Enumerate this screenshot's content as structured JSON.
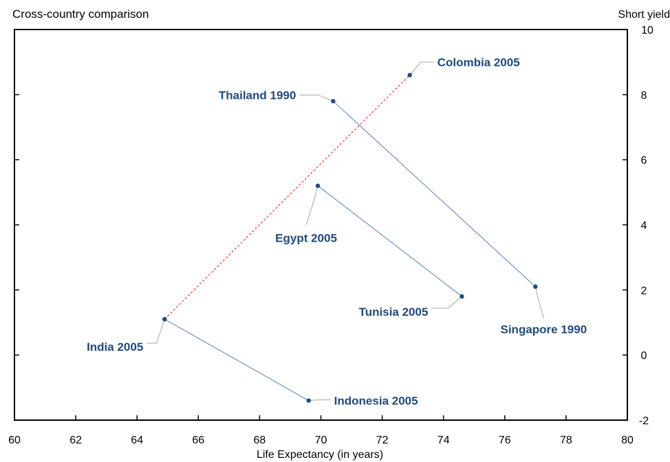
{
  "chart_data": {
    "type": "scatter",
    "title": "Cross-country comparison",
    "xlabel": "Life Expectancy (in years)",
    "ylabel": "Short yield",
    "xlim": [
      60,
      80
    ],
    "ylim": [
      -2,
      10
    ],
    "x_ticks": [
      60,
      62,
      64,
      66,
      68,
      70,
      72,
      74,
      76,
      78,
      80
    ],
    "y_ticks": [
      -2,
      0,
      2,
      4,
      6,
      8,
      10
    ],
    "grid": false,
    "points": [
      {
        "label": "Colombia 2005",
        "x": 72.9,
        "y": 8.6
      },
      {
        "label": "Thailand 1990",
        "x": 70.4,
        "y": 7.8
      },
      {
        "label": "Egypt 2005",
        "x": 69.9,
        "y": 5.2
      },
      {
        "label": "Singapore 1990",
        "x": 77.0,
        "y": 2.1
      },
      {
        "label": "Tunisia 2005",
        "x": 74.6,
        "y": 1.8
      },
      {
        "label": "India 2005",
        "x": 64.9,
        "y": 1.1
      },
      {
        "label": "Indonesia 2005",
        "x": 69.6,
        "y": -1.4
      }
    ],
    "connections": [
      {
        "from": "Thailand 1990",
        "to": "Singapore 1990",
        "style": "solid",
        "color": "#4f81bd"
      },
      {
        "from": "Egypt 2005",
        "to": "Tunisia 2005",
        "style": "solid",
        "color": "#4f81bd"
      },
      {
        "from": "India 2005",
        "to": "Indonesia 2005",
        "style": "solid",
        "color": "#4f81bd"
      },
      {
        "from": "India 2005",
        "to": "Colombia 2005",
        "style": "dotted",
        "color": "#ff0000"
      }
    ],
    "colors": {
      "point": "#1f497d",
      "label": "#1f497d",
      "leader": "#a6a6a6"
    }
  }
}
